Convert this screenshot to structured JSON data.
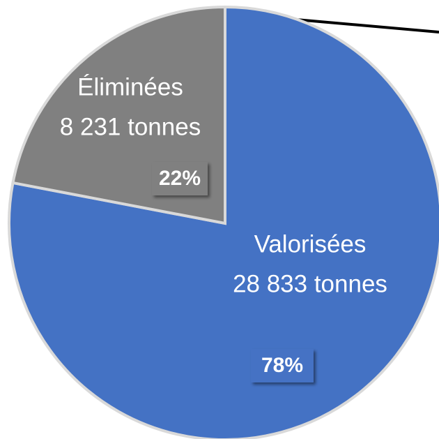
{
  "chart_data": {
    "type": "pie",
    "categories": [
      "Valorisées",
      "Éliminées"
    ],
    "sublabels": [
      "28 833 tonnes",
      "8 231 tonnes"
    ],
    "values": [
      78,
      22
    ],
    "value_labels": [
      "78%",
      "22%"
    ],
    "colors": [
      "#4472c4",
      "#808080"
    ]
  }
}
